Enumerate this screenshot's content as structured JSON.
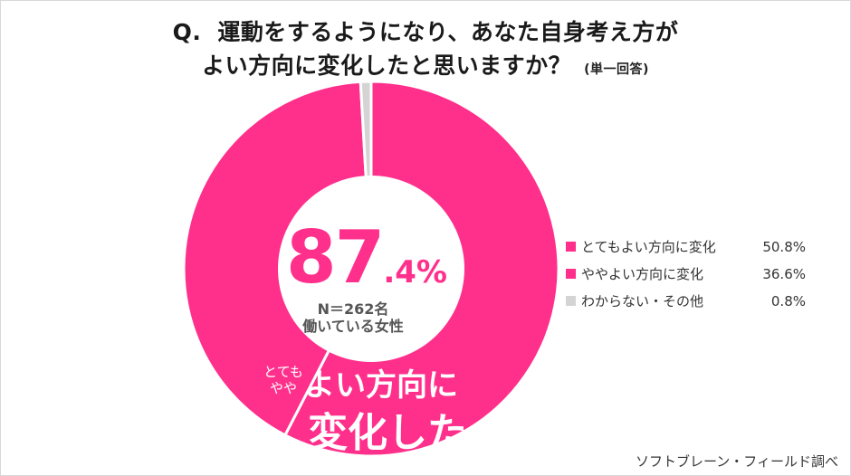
{
  "title": {
    "prefix": "Q.",
    "line1": "運動をするようになり、あなた自身考え方が",
    "line2": "よい方向に変化したと思いますか？",
    "subtitle": "(単一回答)"
  },
  "chart_data": {
    "type": "pie",
    "categories": [
      "とてもよい方向に変化",
      "ややよい方向に変化",
      "わからない・その他"
    ],
    "values": [
      50.8,
      36.6,
      0.8
    ],
    "value_labels": [
      "50.8%",
      "36.6%",
      "0.8%"
    ],
    "colors": [
      "#ff2f8c",
      "#ff2f8c",
      "#d4d4d4"
    ],
    "legend_position": "right"
  },
  "center": {
    "value_big": "87",
    "value_small": ".4%",
    "n": "N＝262名",
    "group": "働いている女性"
  },
  "overlay": {
    "small_line1": "とても",
    "small_line2": "やや",
    "big_line1": "よい方向に",
    "big_line2": "変化した"
  },
  "source": "ソフトブレーン・フィールド調べ"
}
